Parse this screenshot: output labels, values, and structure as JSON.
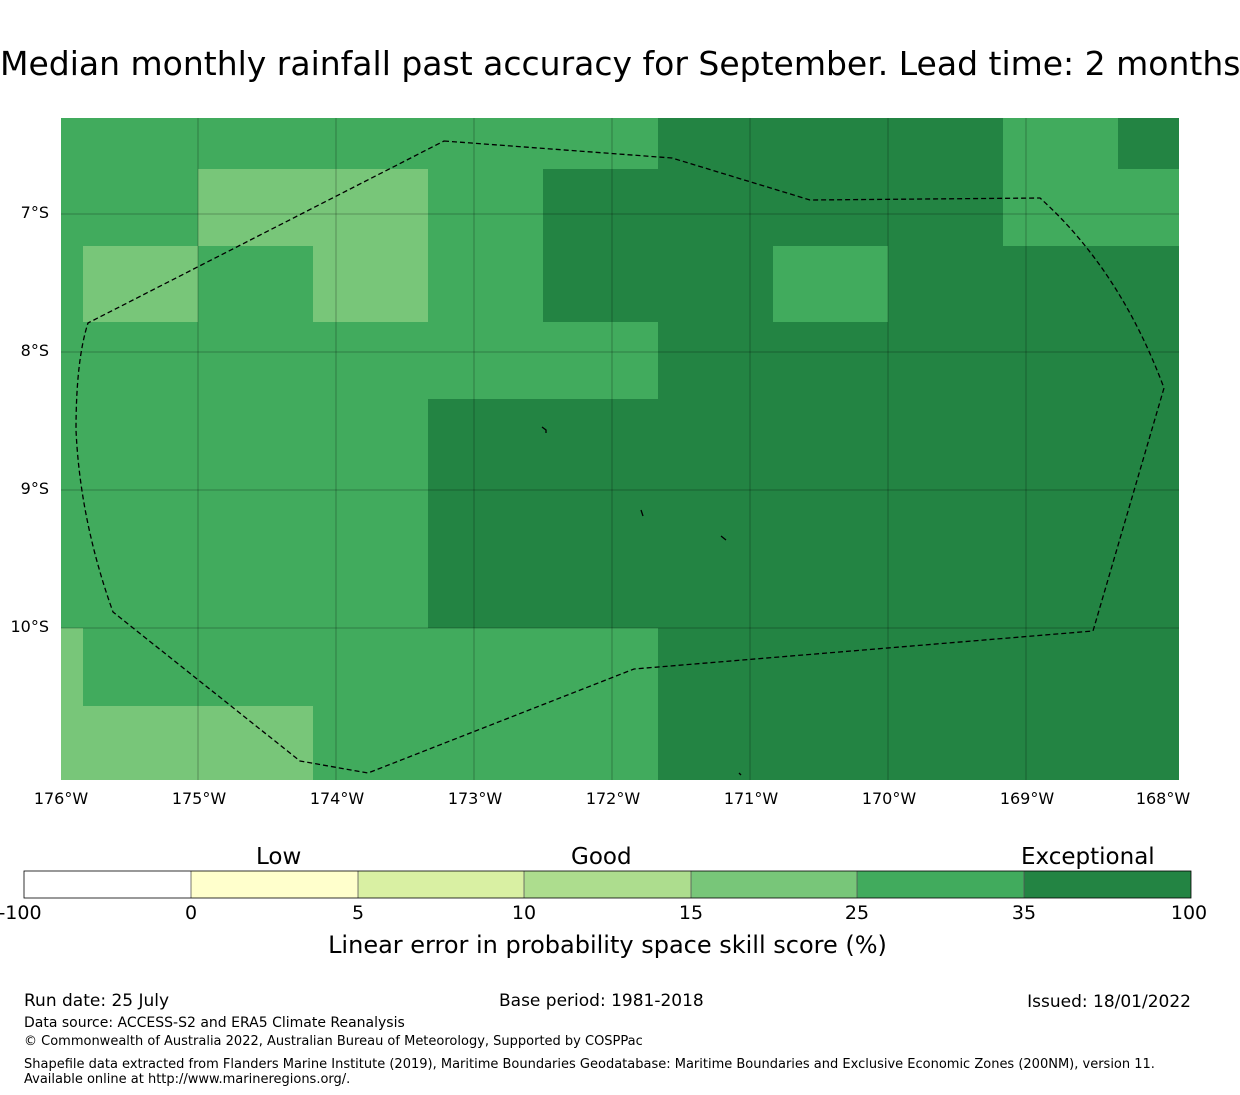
{
  "title": "Median monthly rainfall past accuracy for September. Lead time: 2 months",
  "map": {
    "lon_range": [
      -176,
      -167.9
    ],
    "lat_range": [
      -11.2,
      -6.3
    ],
    "lat_labels": [
      "7°S",
      "8°S",
      "9°S",
      "10°S"
    ],
    "lon_labels": [
      "176°W",
      "175°W",
      "174°W",
      "173°W",
      "172°W",
      "171°W",
      "170°W",
      "169°W",
      "168°W"
    ],
    "category_colors": {
      "15-25": "#78c679",
      "25-35": "#41ab5d",
      "35-100": "#238443"
    }
  },
  "colorbar": {
    "category_labels": [
      "Low",
      "Good",
      "Exceptional"
    ],
    "boundaries": [
      "-100",
      "0",
      "5",
      "10",
      "15",
      "25",
      "35",
      "100"
    ],
    "colors": [
      "#ffffff",
      "#ffffcc",
      "#d9f0a3",
      "#addd8e",
      "#78c679",
      "#41ab5d",
      "#238443"
    ],
    "label": "Linear error in probability space skill score (%)"
  },
  "footer": {
    "run_date": "Run date: 25 July",
    "base_period": "Base period: 1981-2018",
    "issued": "Issued: 18/01/2022",
    "data_source": "Data source: ACCESS-S2 and ERA5 Climate Reanalysis",
    "copyright": "© Commonwealth of Australia 2022, Australian Bureau of Meteorology, Supported by COSPPac",
    "shapefile_note": "Shapefile data extracted from Flanders Marine Institute (2019), Maritime Boundaries Geodatabase: Maritime Boundaries and Exclusive Economic Zones (200NM), version 11. Available online at http://www.marineregions.org/."
  }
}
